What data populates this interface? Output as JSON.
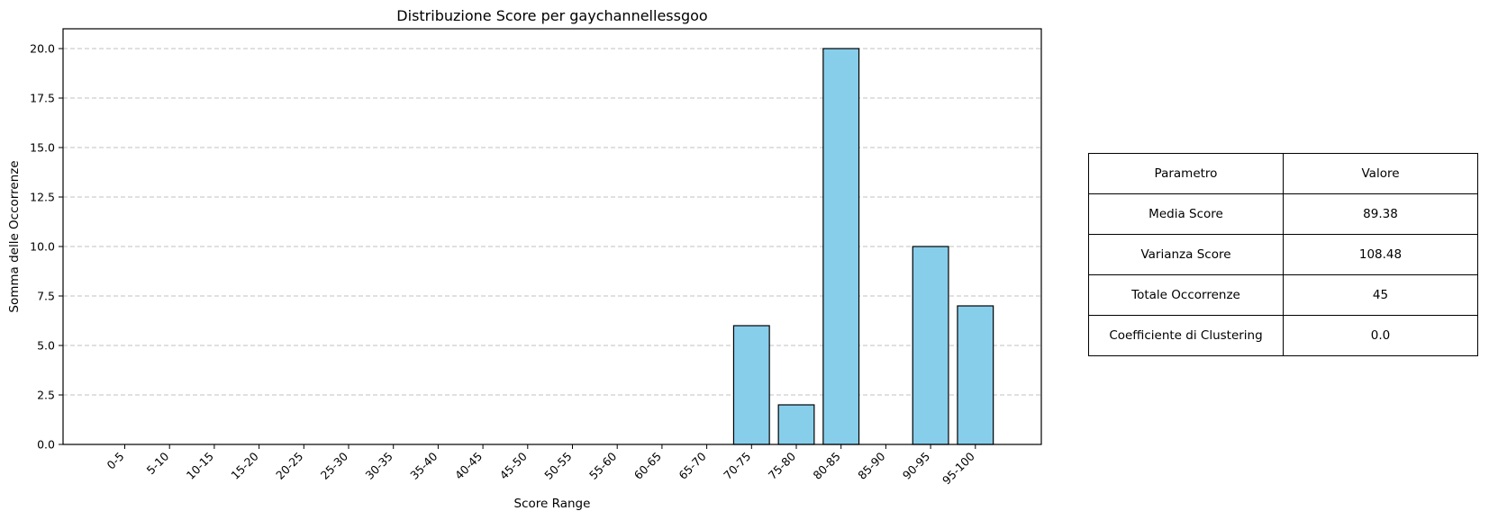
{
  "chart_data": {
    "type": "bar",
    "title": "Distribuzione Score per gaychannellessgoo",
    "xlabel": "Score Range",
    "ylabel": "Somma delle Occorrenze",
    "categories": [
      "0-5",
      "5-10",
      "10-15",
      "15-20",
      "20-25",
      "25-30",
      "30-35",
      "35-40",
      "40-45",
      "45-50",
      "50-55",
      "55-60",
      "60-65",
      "65-70",
      "70-75",
      "75-80",
      "80-85",
      "85-90",
      "90-95",
      "95-100"
    ],
    "values": [
      0,
      0,
      0,
      0,
      0,
      0,
      0,
      0,
      0,
      0,
      0,
      0,
      0,
      0,
      6,
      2,
      20,
      0,
      10,
      7
    ],
    "ylim": [
      0,
      21
    ],
    "yticks": [
      "0.0",
      "2.5",
      "5.0",
      "7.5",
      "10.0",
      "12.5",
      "15.0",
      "17.5",
      "20.0"
    ],
    "grid": "y-dashed",
    "bar_color": "#87CEEB",
    "edge_color": "#000000",
    "grid_color": "#c0c0c0"
  },
  "table": {
    "header": [
      "Parametro",
      "Valore"
    ],
    "rows": [
      [
        "Media Score",
        "89.38"
      ],
      [
        "Varianza Score",
        "108.48"
      ],
      [
        "Totale Occorrenze",
        "45"
      ],
      [
        "Coefficiente di Clustering",
        "0.0"
      ]
    ]
  }
}
